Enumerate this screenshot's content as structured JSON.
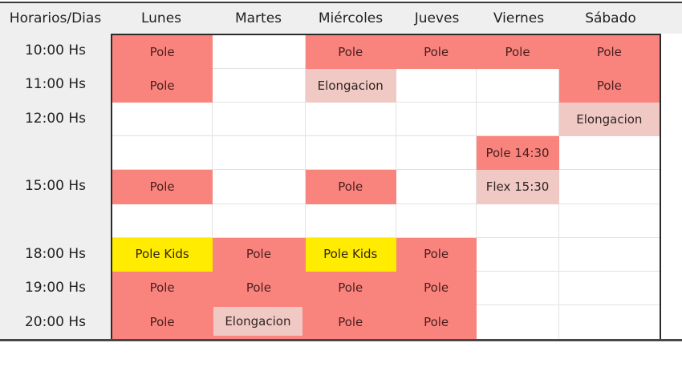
{
  "colors": {
    "pole": "#f9847e",
    "elongacion": "#f0c9c4",
    "pole_kids": "#ffec00",
    "header_band": "#f0eff0",
    "grid_line": "#e2e2e2",
    "frame": "#3a3a3a"
  },
  "header": {
    "corner": "Horarios/Dias",
    "days": [
      "Lunes",
      "Martes",
      "Miércoles",
      "Jueves",
      "Viernes",
      "Sábado"
    ]
  },
  "rows": [
    {
      "time": "10:00 Hs",
      "cells": [
        {
          "text": "Pole",
          "type": "pole"
        },
        {
          "text": "",
          "type": "empty"
        },
        {
          "text": "Pole",
          "type": "pole"
        },
        {
          "text": "Pole",
          "type": "pole"
        },
        {
          "text": "Pole",
          "type": "pole"
        },
        {
          "text": "Pole",
          "type": "pole"
        }
      ]
    },
    {
      "time": "11:00 Hs",
      "cells": [
        {
          "text": "Pole",
          "type": "pole"
        },
        {
          "text": "",
          "type": "empty"
        },
        {
          "text": "Elongacion",
          "type": "elongacion"
        },
        {
          "text": "",
          "type": "empty"
        },
        {
          "text": "",
          "type": "empty"
        },
        {
          "text": "Pole",
          "type": "pole"
        }
      ]
    },
    {
      "time": "12:00 Hs",
      "cells": [
        {
          "text": "",
          "type": "empty"
        },
        {
          "text": "",
          "type": "empty"
        },
        {
          "text": "",
          "type": "empty"
        },
        {
          "text": "",
          "type": "empty"
        },
        {
          "text": "",
          "type": "empty"
        },
        {
          "text": "Elongacion",
          "type": "elongacion"
        }
      ]
    },
    {
      "time": "",
      "cells": [
        {
          "text": "",
          "type": "empty"
        },
        {
          "text": "",
          "type": "empty"
        },
        {
          "text": "",
          "type": "empty"
        },
        {
          "text": "",
          "type": "empty"
        },
        {
          "text": "Pole 14:30",
          "type": "pole"
        },
        {
          "text": "",
          "type": "empty"
        }
      ]
    },
    {
      "time": "15:00 Hs",
      "cells": [
        {
          "text": "Pole",
          "type": "pole"
        },
        {
          "text": "",
          "type": "empty"
        },
        {
          "text": "Pole",
          "type": "pole"
        },
        {
          "text": "",
          "type": "empty"
        },
        {
          "text": "Flex 15:30",
          "type": "elongacion"
        },
        {
          "text": "",
          "type": "empty"
        }
      ]
    },
    {
      "time": "",
      "cells": [
        {
          "text": "",
          "type": "empty"
        },
        {
          "text": "",
          "type": "empty"
        },
        {
          "text": "",
          "type": "empty"
        },
        {
          "text": "",
          "type": "empty"
        },
        {
          "text": "",
          "type": "empty"
        },
        {
          "text": "",
          "type": "empty"
        }
      ]
    },
    {
      "time": "18:00 Hs",
      "cells": [
        {
          "text": "Pole Kids",
          "type": "pole_kids"
        },
        {
          "text": "Pole",
          "type": "pole"
        },
        {
          "text": "Pole Kids",
          "type": "pole_kids"
        },
        {
          "text": "Pole",
          "type": "pole"
        },
        {
          "text": "",
          "type": "empty"
        },
        {
          "text": "",
          "type": "empty"
        }
      ]
    },
    {
      "time": "19:00 Hs",
      "cells": [
        {
          "text": "Pole",
          "type": "pole"
        },
        {
          "text": "Pole",
          "type": "pole"
        },
        {
          "text": "Pole",
          "type": "pole"
        },
        {
          "text": "Pole",
          "type": "pole"
        },
        {
          "text": "",
          "type": "empty"
        },
        {
          "text": "",
          "type": "empty"
        }
      ]
    },
    {
      "time": "20:00 Hs",
      "cells": [
        {
          "text": "Pole",
          "type": "pole"
        },
        {
          "text": "Elongacion",
          "type": "elongacion_inset"
        },
        {
          "text": "Pole",
          "type": "pole"
        },
        {
          "text": "Pole",
          "type": "pole"
        },
        {
          "text": "",
          "type": "empty"
        },
        {
          "text": "",
          "type": "empty"
        }
      ]
    }
  ]
}
